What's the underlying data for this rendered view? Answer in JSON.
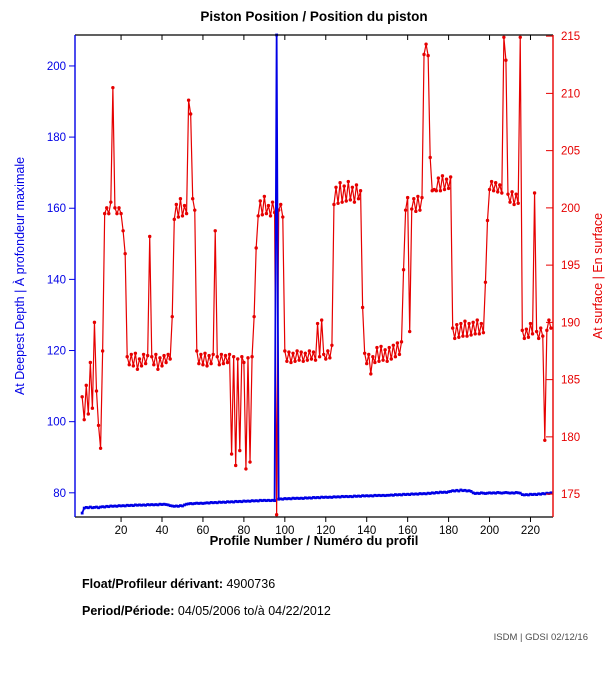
{
  "title": "Piston Position / Position du piston",
  "footer": {
    "float_label": "Float/Profileur dérivant:",
    "float_value": "4900736",
    "period_label": "Period/Période:",
    "period_value": "04/05/2006 to/à  04/22/2012",
    "credit": "ISDM | GDSI 02/12/16"
  },
  "chart_data": {
    "type": "line",
    "title": "Piston Position / Position du piston",
    "xlabel": "Profile Number / Numéro du profil",
    "ylabel_left": "At Deepest Depth | À profondeur maximale",
    "ylabel_right": "At surface | En surface",
    "x_ticks": [
      20,
      40,
      60,
      80,
      100,
      120,
      140,
      160,
      180,
      200,
      220
    ],
    "left_ticks": [
      80,
      100,
      120,
      140,
      160,
      180,
      200
    ],
    "right_ticks": [
      175,
      180,
      185,
      190,
      195,
      200,
      205,
      210,
      215
    ],
    "xlim": [
      -2.5,
      231
    ],
    "ylim_left": [
      73.2,
      208.7
    ],
    "ylim_right": [
      173,
      215.1
    ],
    "grid": false,
    "legend": "none",
    "x_start": 1,
    "colors": {
      "left_axis": "#0000E6",
      "right_axis": "#E60000",
      "frame": "#000000"
    },
    "series": [
      {
        "name": "At surface | En surface",
        "axis": "right",
        "color": "#E60000",
        "marker": "dot",
        "values": [
          183.5,
          181.5,
          184.5,
          182.0,
          186.5,
          182.5,
          190.0,
          184.0,
          181.0,
          179.0,
          187.5,
          199.5,
          200.0,
          199.5,
          200.5,
          210.5,
          200.0,
          199.5,
          200.0,
          199.5,
          198.0,
          196.0,
          187.0,
          186.3,
          187.2,
          186.2,
          187.3,
          185.9,
          186.8,
          186.2,
          187.2,
          186.4,
          187.1,
          197.5,
          187.0,
          186.3,
          187.2,
          185.9,
          186.9,
          186.2,
          187.1,
          186.5,
          187.2,
          186.8,
          190.5,
          199.0,
          200.3,
          199.2,
          200.8,
          199.3,
          200.2,
          199.5,
          209.4,
          208.2,
          200.8,
          199.8,
          187.5,
          186.4,
          187.2,
          186.3,
          187.3,
          186.2,
          187.1,
          186.4,
          187.2,
          198.0,
          187.0,
          186.3,
          187.2,
          186.4,
          187.1,
          186.5,
          187.2,
          178.5,
          187.0,
          177.5,
          186.8,
          178.8,
          187.0,
          186.5,
          177.2,
          186.9,
          177.8,
          187.0,
          190.5,
          196.5,
          199.3,
          200.6,
          199.4,
          201.0,
          199.5,
          200.2,
          199.3,
          200.5,
          199.6,
          173.2,
          199.8,
          200.3,
          199.2,
          187.5,
          186.6,
          187.4,
          186.5,
          187.3,
          186.6,
          187.5,
          186.7,
          187.4,
          186.6,
          187.3,
          186.7,
          187.5,
          186.8,
          187.4,
          186.7,
          189.9,
          187.0,
          190.2,
          187.2,
          186.8,
          187.5,
          186.9,
          188.0,
          200.3,
          201.8,
          200.4,
          202.2,
          200.5,
          201.9,
          200.6,
          202.3,
          200.7,
          201.8,
          200.5,
          202.0,
          200.8,
          201.5,
          191.3,
          187.3,
          186.4,
          187.2,
          185.5,
          187.0,
          186.5,
          187.8,
          186.6,
          187.9,
          186.7,
          187.6,
          186.6,
          187.8,
          186.8,
          188.0,
          187.0,
          188.2,
          187.2,
          188.3,
          194.6,
          199.8,
          200.9,
          189.2,
          199.9,
          200.8,
          199.7,
          201.0,
          199.8,
          200.9,
          213.4,
          214.3,
          213.3,
          204.4,
          201.5,
          201.6,
          201.5,
          202.6,
          201.5,
          202.8,
          201.6,
          202.5,
          201.7,
          202.7,
          189.5,
          188.6,
          189.8,
          188.7,
          189.9,
          188.8,
          190.1,
          188.8,
          189.9,
          188.9,
          190.0,
          189.0,
          190.2,
          189.0,
          189.9,
          189.1,
          193.5,
          198.9,
          201.6,
          202.3,
          201.5,
          202.2,
          201.4,
          202.0,
          201.3,
          214.9,
          212.9,
          201.2,
          200.5,
          201.4,
          200.3,
          201.2,
          200.4,
          214.9,
          189.3,
          188.6,
          189.4,
          188.7,
          189.9,
          189.0,
          201.3,
          189.2,
          188.6,
          189.5,
          188.8,
          179.7,
          189.3,
          190.2,
          189.5
        ]
      },
      {
        "name": "At Deepest Depth | À profondeur maximale",
        "axis": "left",
        "color": "#0000E6",
        "marker": "square",
        "values": [
          74.3,
          75.7,
          75.9,
          75.8,
          76.0,
          75.8,
          75.9,
          76.0,
          75.8,
          76.0,
          76.1,
          76.0,
          76.2,
          76.1,
          76.3,
          76.2,
          76.3,
          76.2,
          76.4,
          76.3,
          76.4,
          76.3,
          76.5,
          76.4,
          76.5,
          76.4,
          76.6,
          76.5,
          76.6,
          76.5,
          76.6,
          76.5,
          76.7,
          76.6,
          76.7,
          76.6,
          76.7,
          76.6,
          76.8,
          76.7,
          76.8,
          76.7,
          76.6,
          76.4,
          76.3,
          76.2,
          76.3,
          76.2,
          76.4,
          76.3,
          76.6,
          76.8,
          76.9,
          77.0,
          76.9,
          77.0,
          77.1,
          77.0,
          77.1,
          77.0,
          77.1,
          77.2,
          77.1,
          77.3,
          77.2,
          77.3,
          77.2,
          77.4,
          77.3,
          77.4,
          77.3,
          77.5,
          77.4,
          77.5,
          77.4,
          77.6,
          77.5,
          77.6,
          77.5,
          77.7,
          77.6,
          77.7,
          77.6,
          77.8,
          77.7,
          77.8,
          77.7,
          77.9,
          77.8,
          77.9,
          77.8,
          77.9,
          77.8,
          77.9,
          77.8,
          208.7,
          78.2,
          78.3,
          78.2,
          78.4,
          78.3,
          78.4,
          78.3,
          78.5,
          78.4,
          78.5,
          78.4,
          78.5,
          78.4,
          78.6,
          78.5,
          78.6,
          78.5,
          78.7,
          78.6,
          78.7,
          78.6,
          78.8,
          78.7,
          78.8,
          78.7,
          78.8,
          78.7,
          78.9,
          78.8,
          78.9,
          78.8,
          79.0,
          78.9,
          79.0,
          78.9,
          79.0,
          78.9,
          79.1,
          79.0,
          79.1,
          79.0,
          79.2,
          79.1,
          79.2,
          79.1,
          79.2,
          79.1,
          79.3,
          79.2,
          79.3,
          79.2,
          79.3,
          79.2,
          79.3,
          79.3,
          79.4,
          79.3,
          79.5,
          79.4,
          79.5,
          79.4,
          79.6,
          79.5,
          79.6,
          79.5,
          79.7,
          79.6,
          79.7,
          79.6,
          79.8,
          79.7,
          79.8,
          79.7,
          79.9,
          79.8,
          80.0,
          79.9,
          80.1,
          80.0,
          80.2,
          80.1,
          80.2,
          80.1,
          80.3,
          80.4,
          80.6,
          80.5,
          80.7,
          80.5,
          80.8,
          80.6,
          80.7,
          80.5,
          80.6,
          80.4,
          80.0,
          79.8,
          79.9,
          79.8,
          80.0,
          79.9,
          79.8,
          79.9,
          80.0,
          79.9,
          80.0,
          79.9,
          80.1,
          80.0,
          79.9,
          80.0,
          80.1,
          80.0,
          79.9,
          80.0,
          79.9,
          80.1,
          80.0,
          79.9,
          79.5,
          79.4,
          79.5,
          79.4,
          79.6,
          79.5,
          79.6,
          79.5,
          79.7,
          79.6,
          79.8,
          79.7,
          79.9,
          79.8,
          80.0
        ]
      }
    ]
  }
}
